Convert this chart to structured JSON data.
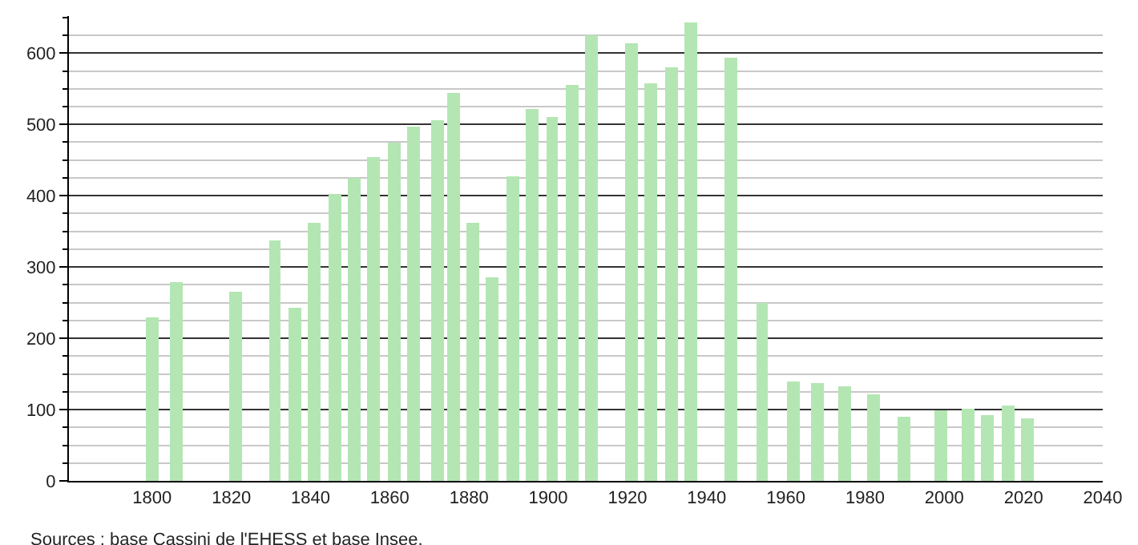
{
  "chart_data": {
    "type": "bar",
    "x": [
      1800,
      1806,
      1821,
      1831,
      1836,
      1841,
      1846,
      1851,
      1856,
      1861,
      1866,
      1872,
      1876,
      1881,
      1886,
      1891,
      1896,
      1901,
      1906,
      1911,
      1921,
      1926,
      1931,
      1936,
      1946,
      1954,
      1962,
      1968,
      1975,
      1982,
      1990,
      1999,
      2006,
      2011,
      2016,
      2021
    ],
    "values": [
      229,
      279,
      266,
      337,
      243,
      362,
      403,
      424,
      455,
      474,
      497,
      506,
      545,
      362,
      286,
      428,
      522,
      511,
      556,
      624,
      614,
      558,
      581,
      644,
      594,
      249,
      140,
      137,
      133,
      122,
      90,
      98,
      101,
      93,
      106,
      88
    ],
    "color": "#b3e6b3",
    "xlim": [
      1779,
      2040
    ],
    "xticks": [
      1800,
      1820,
      1840,
      1860,
      1880,
      1900,
      1920,
      1940,
      1960,
      1980,
      2000,
      2020,
      2040
    ],
    "ylim": [
      0,
      652
    ],
    "yticks": [
      0,
      {
        "value": 25,
        "label": null
      },
      {
        "value": 50,
        "label": null
      },
      {
        "value": 75,
        "label": null
      },
      100,
      {
        "value": 125,
        "label": null
      },
      {
        "value": 150,
        "label": null
      },
      {
        "value": 175,
        "label": null
      },
      200,
      {
        "value": 225,
        "label": null
      },
      {
        "value": 250,
        "label": null
      },
      {
        "value": 275,
        "label": null
      },
      300,
      {
        "value": 325,
        "label": null
      },
      {
        "value": 350,
        "label": null
      },
      {
        "value": 375,
        "label": null
      },
      400,
      {
        "value": 425,
        "label": null
      },
      {
        "value": 450,
        "label": null
      },
      {
        "value": 475,
        "label": null
      },
      500,
      {
        "value": 525,
        "label": null
      },
      {
        "value": 550,
        "label": null
      },
      {
        "value": 575,
        "label": null
      },
      600,
      {
        "value": 625,
        "label": null
      },
      {
        "value": 650,
        "label": null
      }
    ],
    "grid": "y",
    "annotations": [
      "Sources : base Cassini de l'EHESS et base Insee."
    ]
  }
}
